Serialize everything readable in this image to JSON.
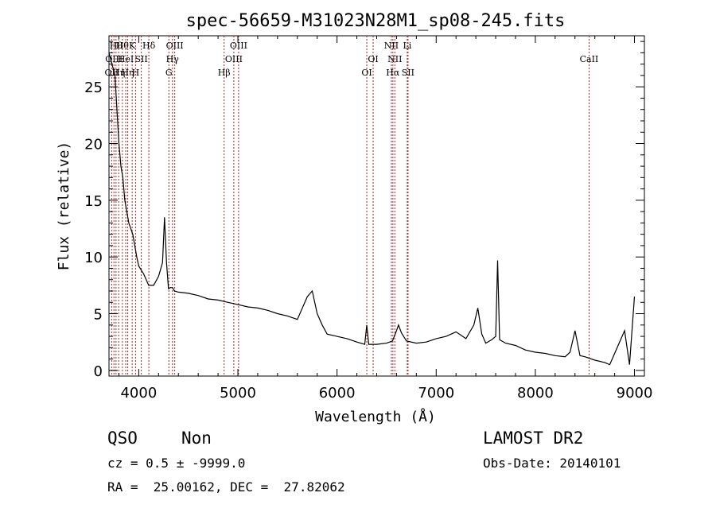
{
  "chart_data": {
    "type": "line",
    "title": "spec-56659-M31023N28M1_sp08-245.fits",
    "xlabel": "Wavelength (Å)",
    "ylabel": "Flux (relative)",
    "xlim": [
      3700,
      9100
    ],
    "ylim": [
      -0.5,
      29.5
    ],
    "xticks": [
      4000,
      5000,
      6000,
      7000,
      8000,
      9000
    ],
    "yticks": [
      0,
      5,
      10,
      15,
      20,
      25
    ],
    "grid": false,
    "series": [
      {
        "color": "#000000",
        "x": [
          3700,
          3760,
          3780,
          3800,
          3820,
          3840,
          3860,
          3880,
          3900,
          3920,
          3940,
          3960,
          3980,
          4000,
          4050,
          4100,
          4150,
          4200,
          4240,
          4260,
          4280,
          4300,
          4320,
          4340,
          4360,
          4400,
          4500,
          4600,
          4700,
          4800,
          4900,
          5000,
          5100,
          5200,
          5300,
          5400,
          5500,
          5600,
          5700,
          5750,
          5800,
          5850,
          5900,
          6000,
          6100,
          6200,
          6280,
          6300,
          6320,
          6400,
          6500,
          6560,
          6600,
          6620,
          6650,
          6700,
          6800,
          6900,
          7000,
          7100,
          7200,
          7300,
          7380,
          7420,
          7460,
          7500,
          7560,
          7600,
          7620,
          7640,
          7700,
          7800,
          7900,
          8000,
          8100,
          8200,
          8300,
          8350,
          8400,
          8450,
          8500,
          8600,
          8700,
          8750,
          8800,
          8850,
          8900,
          8950,
          9000
        ],
        "values": [
          28,
          26,
          23,
          20,
          18,
          17,
          15,
          14,
          13,
          12.5,
          12,
          11,
          10,
          9.2,
          8.5,
          7.5,
          7.5,
          8.3,
          9.5,
          13.5,
          9.5,
          7.2,
          7.3,
          7.3,
          7,
          6.9,
          6.8,
          6.6,
          6.3,
          6.2,
          6,
          5.8,
          5.6,
          5.5,
          5.3,
          5,
          4.8,
          4.5,
          6.5,
          7,
          5,
          4,
          3.2,
          3,
          2.8,
          2.5,
          2.3,
          4,
          2.3,
          2.3,
          2.4,
          2.6,
          3.5,
          4,
          3.3,
          2.6,
          2.4,
          2.5,
          2.8,
          3,
          3.4,
          2.8,
          4,
          5.5,
          3.2,
          2.4,
          2.7,
          3,
          9.7,
          2.7,
          2.4,
          2.2,
          1.8,
          1.6,
          1.5,
          1.3,
          1.2,
          1.6,
          3.5,
          1.3,
          1.2,
          0.9,
          0.7,
          0.5,
          1.5,
          2.5,
          3.5,
          0.5,
          6.5
        ]
      }
    ],
    "lines": [
      {
        "x": 3727,
        "label": "OII",
        "row": 3
      },
      {
        "x": 3750,
        "label": "OIII",
        "row": 2
      },
      {
        "x": 3771,
        "label": "Hθ",
        "row": 1
      },
      {
        "x": 3798,
        "label": "Hη",
        "row": 3
      },
      {
        "x": 3835,
        "label": "Hθ",
        "row": 1
      },
      {
        "x": 3869,
        "label": "HeI",
        "row": 2
      },
      {
        "x": 3889,
        "label": "Hη",
        "row": 3
      },
      {
        "x": 3934,
        "label": "K",
        "row": 1
      },
      {
        "x": 3968,
        "label": "H",
        "row": 3
      },
      {
        "x": 4026,
        "label": "SII",
        "row": 2
      },
      {
        "x": 4102,
        "label": "Hδ",
        "row": 1
      },
      {
        "x": 4304,
        "label": "G",
        "row": 3
      },
      {
        "x": 4340,
        "label": "Hγ",
        "row": 2
      },
      {
        "x": 4363,
        "label": "OIII",
        "row": 1
      },
      {
        "x": 4861,
        "label": "Hβ",
        "row": 3
      },
      {
        "x": 4959,
        "label": "OIII",
        "row": 2
      },
      {
        "x": 5007,
        "label": "OIII",
        "row": 1
      },
      {
        "x": 6300,
        "label": "OI",
        "row": 3
      },
      {
        "x": 6364,
        "label": "OI",
        "row": 2
      },
      {
        "x": 6548,
        "label": "NII",
        "row": 1
      },
      {
        "x": 6563,
        "label": "Hα",
        "row": 3
      },
      {
        "x": 6583,
        "label": "NII",
        "row": 2
      },
      {
        "x": 6708,
        "label": "Li",
        "row": 1
      },
      {
        "x": 6716,
        "label": "SII",
        "row": 3
      },
      {
        "x": 8542,
        "label": "CaII",
        "row": 2
      }
    ]
  },
  "info": {
    "class": "QSO",
    "subclass": "Non",
    "survey": "LAMOST DR2",
    "cz": "cz = 0.5 ± -9999.0",
    "obs_date": "Obs-Date: 20140101",
    "radec": "RA =  25.00162, DEC =  27.82062"
  }
}
